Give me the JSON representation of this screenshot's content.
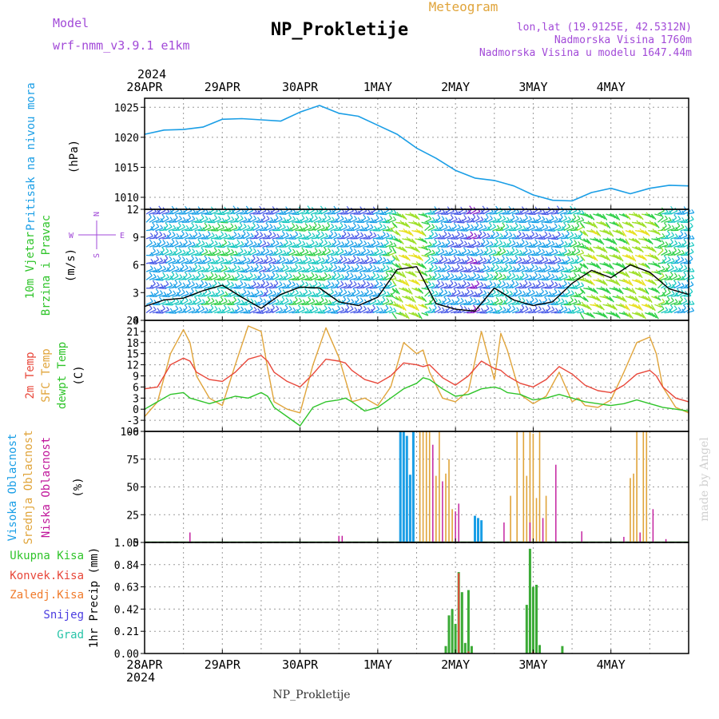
{
  "header": {
    "model_label": "Model",
    "model_name": "wrf-nmm_v3.9.1 e1km",
    "title": "NP_Prokletije",
    "meteogram": "Meteogram",
    "lonlat": "lon,lat (19.9125E, 42.5312N)",
    "altitude": "Nadmorska Visina 1760m",
    "model_altitude": "Nadmorska Visina u modelu 1647.44m",
    "footer": "NP_Prokletije",
    "credit": "made by Angel"
  },
  "time_axis": {
    "year": "2024",
    "labels": [
      "28APR",
      "29APR",
      "30APR",
      "1MAY",
      "2MAY",
      "3MAY",
      "4MAY"
    ]
  },
  "compass": {
    "n": "N",
    "s": "S",
    "w": "W",
    "e": "E"
  },
  "panel_labels": {
    "pressure": [
      "Pritisak na nivou mora",
      "(hPa)"
    ],
    "wind": [
      "10m Vjetar",
      "Brzina i Pravac",
      "(m/s)"
    ],
    "temp": [
      "2m Temp",
      "SFC Temp",
      "dewpt Temp",
      "(C)"
    ],
    "cloud": [
      "Visoka Oblacnost",
      "Srednja Oblacnost",
      "Niska Oblacnost",
      "(%)"
    ],
    "precip": [
      "1hr Precip (mm)"
    ],
    "precip_legend": [
      "Ukupna Kisa",
      "Konvek.Kisa",
      "Zaledj.Kisa",
      "Snijeg",
      "Grad"
    ]
  },
  "colors": {
    "pressure": "#1a9ee6",
    "t2m": "#e8473a",
    "tsfc": "#e0a43a",
    "dew": "#2fc42a",
    "cloud_high": "#1a9ee6",
    "cloud_mid": "#e0a43a",
    "cloud_low": "#c0169b",
    "precip_total": "#3aaa35",
    "precip_conv": "#e8473a",
    "precip_frz": "#f07a2a",
    "precip_snow": "#4a3ce0",
    "precip_hail": "#28c4a8",
    "wind_speed": "#000000"
  },
  "chart_data": [
    {
      "type": "line",
      "name": "pressure",
      "x_unit": "hours since 28APR 00UTC",
      "ylim": [
        1008,
        1026.5
      ],
      "yticks": [
        1010,
        1015,
        1020,
        1025
      ],
      "series": [
        {
          "name": "Pritisak na nivou mora",
          "x": [
            0,
            6,
            12,
            18,
            24,
            30,
            36,
            42,
            48,
            54,
            60,
            66,
            72,
            78,
            84,
            90,
            96,
            102,
            108,
            114,
            120,
            126,
            132,
            138,
            144,
            150,
            156,
            162,
            168
          ],
          "values": [
            1020.5,
            1021.2,
            1021.3,
            1021.7,
            1023.0,
            1023.1,
            1022.9,
            1022.7,
            1024.2,
            1025.3,
            1024.0,
            1023.5,
            1022.0,
            1020.5,
            1018.2,
            1016.5,
            1014.5,
            1013.2,
            1012.8,
            1011.9,
            1010.4,
            1009.5,
            1009.4,
            1010.8,
            1011.5,
            1010.6,
            1011.5,
            1012.0,
            1011.9
          ]
        }
      ]
    },
    {
      "type": "line",
      "name": "wind",
      "ylim": [
        0,
        12
      ],
      "yticks": [
        0,
        3,
        6,
        9,
        12
      ],
      "series": [
        {
          "name": "10m wind speed",
          "x": [
            0,
            6,
            12,
            18,
            24,
            30,
            36,
            42,
            48,
            54,
            60,
            66,
            72,
            78,
            84,
            90,
            96,
            102,
            108,
            114,
            120,
            126,
            132,
            138,
            144,
            150,
            156,
            162,
            168
          ],
          "values": [
            1.5,
            2.2,
            2.4,
            3.2,
            3.8,
            2.5,
            1.3,
            2.8,
            3.6,
            3.5,
            2.0,
            1.6,
            2.5,
            5.5,
            5.8,
            1.8,
            1.2,
            1.0,
            3.5,
            2.2,
            1.6,
            2.0,
            4.0,
            5.4,
            4.6,
            6.0,
            5.2,
            3.4,
            2.8
          ]
        }
      ]
    },
    {
      "type": "line",
      "name": "temperature",
      "ylim": [
        -6,
        24
      ],
      "yticks": [
        -6,
        -3,
        0,
        3,
        6,
        9,
        12,
        15,
        18,
        21,
        24
      ],
      "series": [
        {
          "name": "2m Temp",
          "x": [
            0,
            4,
            8,
            12,
            14,
            16,
            20,
            24,
            28,
            32,
            36,
            38,
            40,
            44,
            48,
            52,
            56,
            60,
            62,
            64,
            68,
            72,
            76,
            80,
            84,
            86,
            88,
            92,
            96,
            100,
            104,
            108,
            110,
            112,
            116,
            120,
            124,
            128,
            132,
            134,
            136,
            140,
            144,
            148,
            152,
            156,
            158,
            160,
            164,
            168
          ],
          "values": [
            5.5,
            6.0,
            12.0,
            13.8,
            13.0,
            10.0,
            8.0,
            7.5,
            10.0,
            13.5,
            14.5,
            13.0,
            10.0,
            7.5,
            6.0,
            9.5,
            13.5,
            13.0,
            12.5,
            10.5,
            8.0,
            7.0,
            9.0,
            12.5,
            12.0,
            11.5,
            12.0,
            8.5,
            6.5,
            9.0,
            13.0,
            11.0,
            10.5,
            9.0,
            7.0,
            6.0,
            8.0,
            11.5,
            9.5,
            8.0,
            6.5,
            5.0,
            4.5,
            6.5,
            9.5,
            10.5,
            9.0,
            6.0,
            3.0,
            2.0
          ]
        },
        {
          "name": "SFC Temp",
          "x": [
            0,
            4,
            8,
            12,
            14,
            16,
            20,
            24,
            28,
            32,
            36,
            38,
            40,
            44,
            48,
            52,
            56,
            60,
            62,
            64,
            68,
            72,
            76,
            80,
            84,
            86,
            88,
            92,
            96,
            100,
            104,
            108,
            110,
            112,
            116,
            120,
            124,
            128,
            132,
            134,
            136,
            140,
            144,
            148,
            152,
            156,
            158,
            160,
            164,
            168
          ],
          "values": [
            -2.0,
            2.0,
            15.0,
            21.5,
            18.0,
            9.0,
            3.0,
            1.0,
            12.0,
            22.5,
            21.0,
            11.0,
            2.0,
            0.0,
            -1.0,
            12.0,
            22.0,
            14.0,
            8.0,
            2.0,
            3.0,
            1.0,
            6.0,
            18.0,
            15.0,
            16.0,
            10.0,
            3.0,
            2.0,
            5.0,
            21.0,
            8.0,
            20.5,
            16.0,
            4.0,
            1.5,
            3.5,
            10.0,
            2.0,
            3.0,
            1.0,
            0.5,
            2.5,
            10.0,
            18.0,
            19.5,
            15.0,
            6.0,
            0.5,
            -1.0
          ]
        },
        {
          "name": "dewpt Temp",
          "x": [
            0,
            4,
            8,
            12,
            14,
            16,
            20,
            24,
            28,
            32,
            36,
            38,
            40,
            44,
            48,
            52,
            56,
            60,
            62,
            64,
            68,
            72,
            76,
            80,
            84,
            86,
            88,
            92,
            96,
            100,
            104,
            108,
            110,
            112,
            116,
            120,
            124,
            128,
            132,
            134,
            136,
            140,
            144,
            148,
            152,
            156,
            158,
            160,
            164,
            168
          ],
          "values": [
            0.0,
            2.0,
            4.0,
            4.5,
            3.0,
            2.5,
            1.5,
            2.5,
            3.5,
            3.0,
            4.5,
            3.5,
            0.5,
            -2.0,
            -4.5,
            0.5,
            2.0,
            2.5,
            3.0,
            2.0,
            -0.5,
            0.5,
            3.0,
            5.5,
            7.0,
            8.5,
            8.0,
            5.5,
            3.5,
            4.0,
            5.5,
            6.0,
            5.5,
            4.5,
            4.0,
            2.5,
            3.0,
            4.0,
            3.0,
            2.5,
            2.0,
            1.5,
            1.0,
            1.5,
            2.5,
            1.5,
            1.0,
            0.5,
            0.0,
            -0.5
          ]
        }
      ]
    },
    {
      "type": "bar",
      "name": "cloud",
      "ylim": [
        0,
        100
      ],
      "yticks": [
        0,
        25,
        50,
        75,
        100
      ],
      "series": [
        {
          "name": "Visoka Oblacnost",
          "x": [
            79,
            80,
            81,
            82,
            83,
            102,
            103,
            104
          ],
          "values": [
            100,
            100,
            96,
            61,
            100,
            24,
            22,
            20
          ]
        },
        {
          "name": "Srednja Oblacnost",
          "x": [
            85,
            86,
            87,
            88,
            90,
            91,
            93,
            94,
            95,
            113,
            115,
            117,
            118,
            119,
            120,
            121,
            122,
            124,
            150,
            151,
            152,
            154,
            155
          ],
          "values": [
            100,
            100,
            100,
            100,
            60,
            100,
            62,
            75,
            30,
            42,
            100,
            100,
            60,
            100,
            98,
            40,
            100,
            42,
            58,
            62,
            100,
            100,
            100
          ]
        },
        {
          "name": "Niska Oblacnost",
          "x": [
            14,
            60,
            61,
            89,
            92,
            96,
            97,
            111,
            119,
            123,
            127,
            135,
            148,
            153,
            157,
            161
          ],
          "values": [
            9,
            6,
            6,
            88,
            55,
            28,
            35,
            18,
            18,
            22,
            70,
            10,
            5,
            9,
            30,
            3
          ]
        }
      ]
    },
    {
      "type": "bar",
      "name": "precip",
      "ylim": [
        0,
        1.05
      ],
      "yticks": [
        0,
        0.21,
        0.42,
        0.63,
        0.84,
        1.05
      ],
      "series": [
        {
          "name": "Ukupna Kisa",
          "x": [
            93,
            94,
            95,
            96,
            97,
            98,
            99,
            100,
            101,
            102,
            118,
            119,
            120,
            121,
            122,
            123,
            129
          ],
          "values": [
            0.07,
            0.36,
            0.42,
            0.28,
            0.77,
            0.58,
            0.1,
            0.6,
            0.07,
            0.0,
            0.46,
            0.99,
            0.63,
            0.65,
            0.08,
            0.0,
            0.07
          ]
        },
        {
          "name": "Konvek.Kisa",
          "x": [
            97,
            100,
            120
          ],
          "values": [
            0.76,
            0.02,
            0.02
          ]
        }
      ]
    }
  ]
}
